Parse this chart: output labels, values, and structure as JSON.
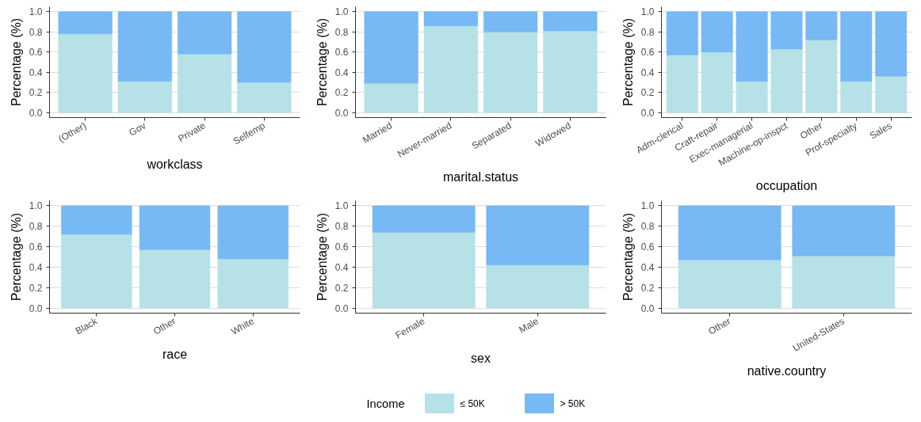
{
  "chart_data": [
    {
      "type": "bar",
      "stacked": true,
      "xlabel": "workclass",
      "ylabel": "Percentage (%)",
      "categories": [
        "(Other)",
        "Gov",
        "Private",
        "Selfemp"
      ],
      "series": [
        {
          "color": "#b6e1e6",
          "values": [
            0.78,
            0.31,
            0.58,
            0.3
          ]
        },
        {
          "color": "#76b9f5",
          "values": [
            0.22,
            0.69,
            0.42,
            0.7
          ]
        }
      ],
      "ylim": [
        -0.05,
        1.05
      ],
      "yticks": [
        {
          "value": 0,
          "label": "0.0"
        },
        {
          "value": 0.2,
          "label": "0.2"
        },
        {
          "value": 0.4,
          "label": "0.4"
        },
        {
          "value": 0.6,
          "label": "0.6"
        },
        {
          "value": 0.8,
          "label": "0.8"
        },
        {
          "value": 1,
          "label": "1.0"
        }
      ],
      "grid": "y"
    },
    {
      "type": "bar",
      "stacked": true,
      "xlabel": "marital.status",
      "ylabel": "Percentage (%)",
      "categories": [
        "Married",
        "Never-married",
        "Separated",
        "Widowed"
      ],
      "series": [
        {
          "color": "#b6e1e6",
          "values": [
            0.29,
            0.86,
            0.8,
            0.81
          ]
        },
        {
          "color": "#76b9f5",
          "values": [
            0.71,
            0.14,
            0.2,
            0.19
          ]
        }
      ],
      "ylim": [
        -0.05,
        1.05
      ],
      "yticks": [
        {
          "value": 0,
          "label": "0.0"
        },
        {
          "value": 0.2,
          "label": "0.2"
        },
        {
          "value": 0.4,
          "label": "0.4"
        },
        {
          "value": 0.6,
          "label": "0.6"
        },
        {
          "value": 0.8,
          "label": "0.8"
        },
        {
          "value": 1,
          "label": "1.0"
        }
      ],
      "grid": "y"
    },
    {
      "type": "bar",
      "stacked": true,
      "xlabel": "occupation",
      "ylabel": "Percentage (%)",
      "categories": [
        "Adm-clerical",
        "Craft-repair",
        "Exec-managerial",
        "Machine-op-inspct",
        "Other",
        "Prof-specialty",
        "Sales"
      ],
      "series": [
        {
          "color": "#b6e1e6",
          "values": [
            0.57,
            0.6,
            0.31,
            0.63,
            0.72,
            0.31,
            0.36
          ]
        },
        {
          "color": "#76b9f5",
          "values": [
            0.43,
            0.4,
            0.69,
            0.37,
            0.28,
            0.69,
            0.64
          ]
        }
      ],
      "ylim": [
        -0.05,
        1.05
      ],
      "yticks": [
        {
          "value": 0,
          "label": "0.0"
        },
        {
          "value": 0.2,
          "label": "0.2"
        },
        {
          "value": 0.4,
          "label": "0.4"
        },
        {
          "value": 0.6,
          "label": "0.6"
        },
        {
          "value": 0.8,
          "label": "0.8"
        },
        {
          "value": 1,
          "label": "1.0"
        }
      ],
      "grid": "y"
    },
    {
      "type": "bar",
      "stacked": true,
      "xlabel": "race",
      "ylabel": "Percentage (%)",
      "categories": [
        "Black",
        "Other",
        "White"
      ],
      "series": [
        {
          "color": "#b6e1e6",
          "values": [
            0.72,
            0.57,
            0.48
          ]
        },
        {
          "color": "#76b9f5",
          "values": [
            0.28,
            0.43,
            0.52
          ]
        }
      ],
      "ylim": [
        -0.05,
        1.05
      ],
      "yticks": [
        {
          "value": 0,
          "label": "0.0"
        },
        {
          "value": 0.2,
          "label": "0.2"
        },
        {
          "value": 0.4,
          "label": "0.4"
        },
        {
          "value": 0.6,
          "label": "0.6"
        },
        {
          "value": 0.8,
          "label": "0.8"
        },
        {
          "value": 1,
          "label": "1.0"
        }
      ],
      "grid": "y"
    },
    {
      "type": "bar",
      "stacked": true,
      "xlabel": "sex",
      "ylabel": "Percentage (%)",
      "legend_title": "Income",
      "legend": "bottom",
      "categories": [
        "Female",
        "Male"
      ],
      "series": [
        {
          "name": "≤ 50K",
          "color": "#b6e1e6",
          "values": [
            0.74,
            0.42
          ]
        },
        {
          "name": "> 50K",
          "color": "#76b9f5",
          "values": [
            0.26,
            0.58
          ]
        }
      ],
      "ylim": [
        -0.05,
        1.05
      ],
      "yticks": [
        {
          "value": 0,
          "label": "0.0"
        },
        {
          "value": 0.2,
          "label": "0.2"
        },
        {
          "value": 0.4,
          "label": "0.4"
        },
        {
          "value": 0.6,
          "label": "0.6"
        },
        {
          "value": 0.8,
          "label": "0.8"
        },
        {
          "value": 1,
          "label": "1.0"
        }
      ],
      "grid": "y"
    },
    {
      "type": "bar",
      "stacked": true,
      "xlabel": "native.country",
      "ylabel": "Percentage (%)",
      "categories": [
        "Other",
        "United-States"
      ],
      "series": [
        {
          "color": "#b6e1e6",
          "values": [
            0.47,
            0.51
          ]
        },
        {
          "color": "#76b9f5",
          "values": [
            0.53,
            0.49
          ]
        }
      ],
      "ylim": [
        -0.05,
        1.05
      ],
      "yticks": [
        {
          "value": 0,
          "label": "0.0"
        },
        {
          "value": 0.2,
          "label": "0.2"
        },
        {
          "value": 0.4,
          "label": "0.4"
        },
        {
          "value": 0.6,
          "label": "0.6"
        },
        {
          "value": 0.8,
          "label": "0.8"
        },
        {
          "value": 1,
          "label": "1.0"
        }
      ],
      "grid": "y"
    }
  ]
}
